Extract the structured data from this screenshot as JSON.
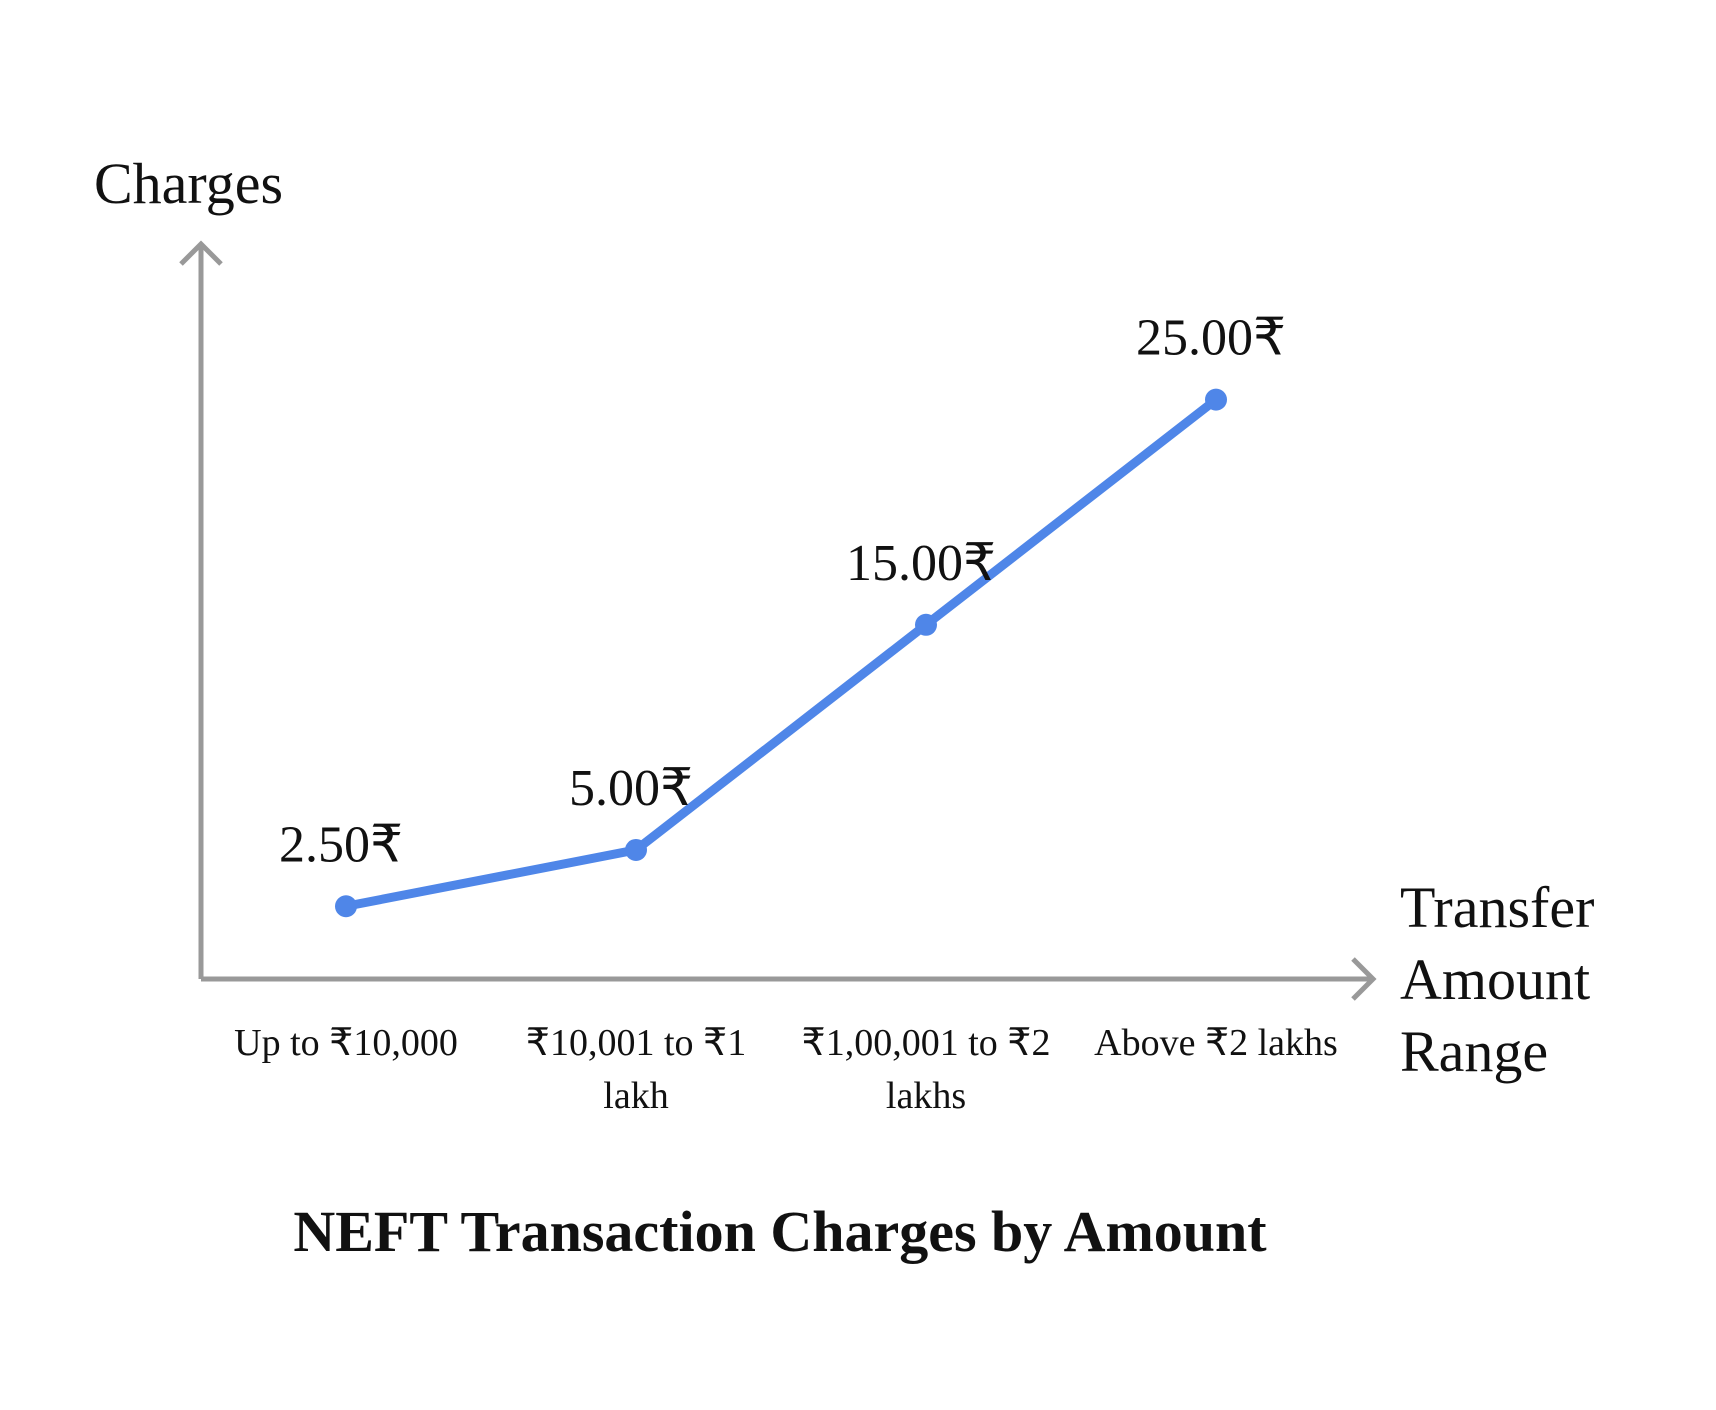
{
  "chart_data": {
    "type": "line",
    "title": "NEFT Transaction Charges by Amount",
    "x_label": "Transfer Amount Range",
    "y_label": "Charges",
    "categories": [
      "Up to ₹10,000",
      "₹10,001 to ₹1 lakh",
      "₹1,00,001 to ₹2 lakhs",
      "Above ₹2 lakhs"
    ],
    "values": [
      2.5,
      5,
      15,
      25
    ],
    "value_labels": [
      "2.50₹",
      "5.00₹",
      "15.00₹",
      "25.00₹"
    ],
    "color": "#4f86e8",
    "ylim": [
      -0.73,
      32
    ]
  }
}
